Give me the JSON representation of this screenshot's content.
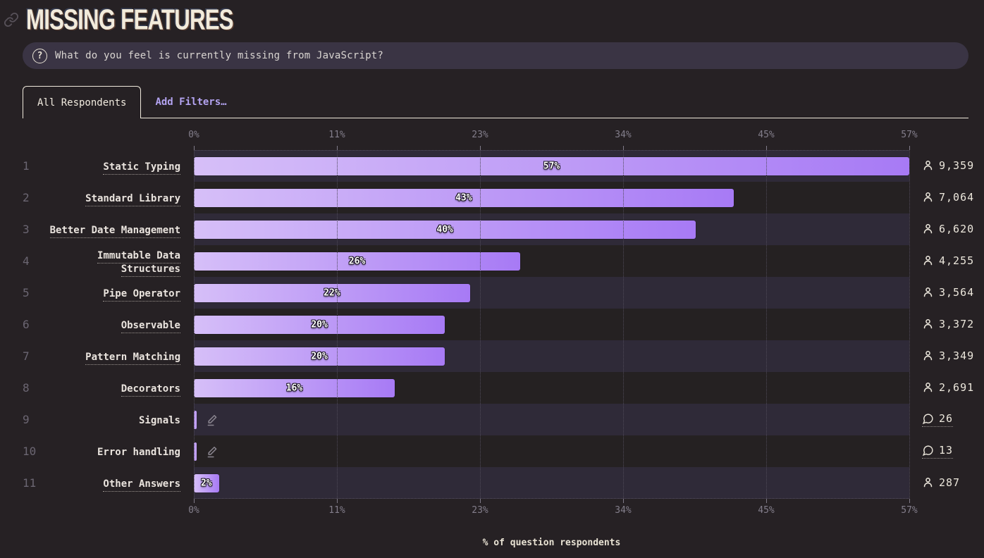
{
  "header": {
    "title": "Missing Features"
  },
  "question": {
    "text": "What do you feel is currently missing from JavaScript?",
    "icon": "question-circle-icon"
  },
  "tabs": {
    "all_respondents": "All Respondents",
    "add_filters": "Add Filters…"
  },
  "colors": {
    "background": "#262124",
    "bar_gradient_start": "#d6bff8",
    "bar_gradient_end": "#a77af5",
    "accent_link": "#b3a3f0",
    "cream_text": "#ece6da",
    "band_odd": "#2f2a38",
    "band_even": "#252122"
  },
  "chart_data": {
    "type": "bar",
    "orientation": "horizontal",
    "title": "Missing Features",
    "xlabel": "% of question respondents",
    "xlim": [
      0,
      57
    ],
    "x_tick_labels": [
      "0%",
      "11%",
      "23%",
      "34%",
      "45%",
      "57%"
    ],
    "x_tick_positions_percent": [
      0,
      20,
      40,
      60,
      80,
      100
    ],
    "grid": "dotted-vertical",
    "rows": [
      {
        "rank": "1",
        "label": "Static Typing",
        "percent": 57,
        "percent_label": "57%",
        "count": "9,359",
        "count_icon": "person"
      },
      {
        "rank": "2",
        "label": "Standard Library",
        "percent": 43,
        "percent_label": "43%",
        "count": "7,064",
        "count_icon": "person"
      },
      {
        "rank": "3",
        "label": "Better Date Management",
        "percent": 40,
        "percent_label": "40%",
        "count": "6,620",
        "count_icon": "person"
      },
      {
        "rank": "4",
        "label": "Immutable Data Structures",
        "percent": 26,
        "percent_label": "26%",
        "count": "4,255",
        "count_icon": "person"
      },
      {
        "rank": "5",
        "label": "Pipe Operator",
        "percent": 22,
        "percent_label": "22%",
        "count": "3,564",
        "count_icon": "person"
      },
      {
        "rank": "6",
        "label": "Observable",
        "percent": 20,
        "percent_label": "20%",
        "count": "3,372",
        "count_icon": "person"
      },
      {
        "rank": "7",
        "label": "Pattern Matching",
        "percent": 20,
        "percent_label": "20%",
        "count": "3,349",
        "count_icon": "person"
      },
      {
        "rank": "8",
        "label": "Decorators",
        "percent": 16,
        "percent_label": "16%",
        "count": "2,691",
        "count_icon": "person"
      },
      {
        "rank": "9",
        "label": "Signals",
        "percent": null,
        "percent_label": null,
        "freeform": true,
        "count": "26",
        "count_icon": "comment"
      },
      {
        "rank": "10",
        "label": "Error handling",
        "percent": null,
        "percent_label": null,
        "freeform": true,
        "count": "13",
        "count_icon": "comment"
      },
      {
        "rank": "11",
        "label": "Other Answers",
        "percent": 2,
        "percent_label": "2%",
        "count": "287",
        "count_icon": "person"
      }
    ]
  }
}
